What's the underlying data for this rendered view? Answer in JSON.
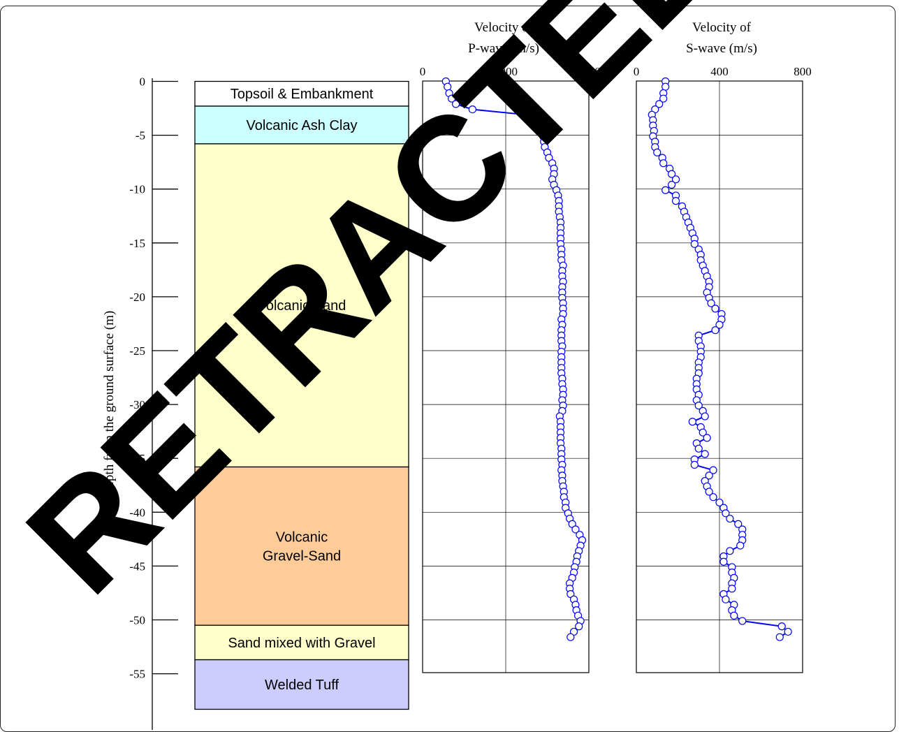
{
  "depth_axis": {
    "label": "Depth from the ground surface (m)",
    "ticks": [
      "0",
      "-5",
      "-10",
      "-15",
      "-20",
      "-25",
      "-30",
      "-35",
      "-40",
      "-45",
      "-50",
      "-55"
    ]
  },
  "layers": [
    {
      "name": "Topsoil & Embankment",
      "top": 0,
      "bottom": -2.3,
      "color": "#ffffff"
    },
    {
      "name": "Volcanic Ash Clay",
      "top": -2.3,
      "bottom": -5.8,
      "color": "#ccffff"
    },
    {
      "name": "Volcanic Sand",
      "top": -5.8,
      "bottom": -35.8,
      "color": "#ffffcc"
    },
    {
      "name": "Volcanic Gravel-Sand",
      "lines": [
        "Volcanic",
        "Gravel-Sand"
      ],
      "top": -35.8,
      "bottom": -50.5,
      "color": "#ffcc99"
    },
    {
      "name": "Sand mixed with Gravel",
      "top": -50.5,
      "bottom": -53.7,
      "color": "#ffffcc"
    },
    {
      "name": "Welded Tuff",
      "top": -53.7,
      "bottom": -58.3,
      "color": "#ccccff"
    }
  ],
  "watermark": "RETRACTED ARTICLE",
  "series_color": "#0000ff",
  "chart_data": [
    {
      "type": "scatter",
      "title": [
        "Velocity of",
        "P-wave (m/s)"
      ],
      "xlim": [
        0,
        2000
      ],
      "xticks": [
        "0",
        "1000",
        "2000"
      ],
      "ylim": [
        -55,
        0
      ],
      "grid": true,
      "points": [
        [
          280,
          0
        ],
        [
          300,
          -0.5
        ],
        [
          320,
          -1.1
        ],
        [
          350,
          -1.6
        ],
        [
          400,
          -2.1
        ],
        [
          600,
          -2.6
        ],
        [
          1250,
          -3.1
        ],
        [
          1440,
          -3.6
        ],
        [
          1440,
          -4.1
        ],
        [
          1450,
          -4.6
        ],
        [
          1450,
          -5.1
        ],
        [
          1460,
          -5.6
        ],
        [
          1470,
          -6.1
        ],
        [
          1500,
          -6.6
        ],
        [
          1520,
          -7.1
        ],
        [
          1560,
          -7.6
        ],
        [
          1580,
          -8.1
        ],
        [
          1580,
          -8.6
        ],
        [
          1560,
          -9.1
        ],
        [
          1580,
          -9.6
        ],
        [
          1610,
          -10.1
        ],
        [
          1630,
          -10.6
        ],
        [
          1640,
          -11.1
        ],
        [
          1640,
          -11.6
        ],
        [
          1640,
          -12.1
        ],
        [
          1650,
          -12.6
        ],
        [
          1660,
          -13.1
        ],
        [
          1660,
          -13.6
        ],
        [
          1660,
          -14.1
        ],
        [
          1660,
          -14.6
        ],
        [
          1660,
          -15.1
        ],
        [
          1670,
          -15.6
        ],
        [
          1670,
          -16.1
        ],
        [
          1670,
          -16.6
        ],
        [
          1690,
          -17.1
        ],
        [
          1680,
          -17.6
        ],
        [
          1680,
          -18.1
        ],
        [
          1690,
          -18.6
        ],
        [
          1680,
          -19.1
        ],
        [
          1680,
          -19.6
        ],
        [
          1680,
          -20.1
        ],
        [
          1690,
          -20.6
        ],
        [
          1690,
          -21.1
        ],
        [
          1690,
          -21.6
        ],
        [
          1670,
          -22.1
        ],
        [
          1680,
          -22.6
        ],
        [
          1670,
          -23.1
        ],
        [
          1670,
          -23.6
        ],
        [
          1670,
          -24.1
        ],
        [
          1680,
          -24.6
        ],
        [
          1670,
          -25.1
        ],
        [
          1670,
          -25.6
        ],
        [
          1670,
          -26.1
        ],
        [
          1670,
          -26.6
        ],
        [
          1670,
          -27.1
        ],
        [
          1680,
          -27.6
        ],
        [
          1680,
          -28.1
        ],
        [
          1690,
          -28.6
        ],
        [
          1690,
          -29.1
        ],
        [
          1680,
          -29.6
        ],
        [
          1690,
          -30.1
        ],
        [
          1680,
          -30.6
        ],
        [
          1650,
          -31.1
        ],
        [
          1660,
          -31.6
        ],
        [
          1660,
          -32.1
        ],
        [
          1660,
          -32.6
        ],
        [
          1660,
          -33.1
        ],
        [
          1660,
          -33.6
        ],
        [
          1670,
          -34.1
        ],
        [
          1670,
          -34.6
        ],
        [
          1670,
          -35.1
        ],
        [
          1680,
          -35.6
        ],
        [
          1670,
          -36.1
        ],
        [
          1680,
          -36.6
        ],
        [
          1680,
          -37.1
        ],
        [
          1690,
          -37.6
        ],
        [
          1700,
          -38.1
        ],
        [
          1700,
          -38.6
        ],
        [
          1720,
          -39.1
        ],
        [
          1720,
          -39.6
        ],
        [
          1750,
          -40.1
        ],
        [
          1770,
          -40.6
        ],
        [
          1800,
          -41.1
        ],
        [
          1840,
          -41.6
        ],
        [
          1890,
          -42.1
        ],
        [
          1920,
          -42.6
        ],
        [
          1900,
          -43.1
        ],
        [
          1880,
          -43.6
        ],
        [
          1860,
          -44.1
        ],
        [
          1850,
          -44.6
        ],
        [
          1830,
          -45.1
        ],
        [
          1820,
          -45.6
        ],
        [
          1800,
          -46.1
        ],
        [
          1770,
          -46.6
        ],
        [
          1770,
          -47.1
        ],
        [
          1780,
          -47.6
        ],
        [
          1820,
          -48.1
        ],
        [
          1840,
          -48.6
        ],
        [
          1850,
          -49.1
        ],
        [
          1870,
          -49.6
        ],
        [
          1900,
          -50.1
        ],
        [
          1880,
          -50.6
        ],
        [
          1820,
          -51.1
        ],
        [
          1780,
          -51.6
        ]
      ]
    },
    {
      "type": "scatter",
      "title": [
        "Velocity of",
        "S-wave (m/s)"
      ],
      "xlim": [
        0,
        800
      ],
      "xticks": [
        "0",
        "400",
        "800"
      ],
      "ylim": [
        -55,
        0
      ],
      "grid": true,
      "points": [
        [
          140,
          0
        ],
        [
          140,
          -0.5
        ],
        [
          130,
          -1.1
        ],
        [
          130,
          -1.6
        ],
        [
          110,
          -2.1
        ],
        [
          90,
          -2.6
        ],
        [
          75,
          -3.1
        ],
        [
          80,
          -3.6
        ],
        [
          80,
          -4.1
        ],
        [
          85,
          -4.6
        ],
        [
          80,
          -5.1
        ],
        [
          90,
          -5.6
        ],
        [
          90,
          -6.1
        ],
        [
          100,
          -6.6
        ],
        [
          125,
          -7.1
        ],
        [
          130,
          -7.6
        ],
        [
          160,
          -8.1
        ],
        [
          170,
          -8.6
        ],
        [
          190,
          -9.1
        ],
        [
          170,
          -9.6
        ],
        [
          140,
          -10.1
        ],
        [
          190,
          -10.6
        ],
        [
          190,
          -11.1
        ],
        [
          220,
          -11.6
        ],
        [
          230,
          -12.1
        ],
        [
          240,
          -12.6
        ],
        [
          250,
          -13.1
        ],
        [
          260,
          -13.6
        ],
        [
          270,
          -14.1
        ],
        [
          280,
          -14.6
        ],
        [
          280,
          -15.1
        ],
        [
          300,
          -15.6
        ],
        [
          310,
          -16.1
        ],
        [
          310,
          -16.6
        ],
        [
          320,
          -17.1
        ],
        [
          330,
          -17.6
        ],
        [
          340,
          -18.1
        ],
        [
          350,
          -18.6
        ],
        [
          350,
          -19.1
        ],
        [
          340,
          -19.6
        ],
        [
          350,
          -20.1
        ],
        [
          360,
          -20.6
        ],
        [
          380,
          -21.1
        ],
        [
          410,
          -21.6
        ],
        [
          410,
          -22.1
        ],
        [
          400,
          -22.6
        ],
        [
          380,
          -23.1
        ],
        [
          300,
          -23.6
        ],
        [
          300,
          -24.1
        ],
        [
          310,
          -24.6
        ],
        [
          310,
          -25.1
        ],
        [
          310,
          -25.6
        ],
        [
          300,
          -26.1
        ],
        [
          300,
          -26.6
        ],
        [
          300,
          -27.1
        ],
        [
          290,
          -27.6
        ],
        [
          290,
          -28.1
        ],
        [
          290,
          -28.6
        ],
        [
          300,
          -29.1
        ],
        [
          290,
          -29.6
        ],
        [
          300,
          -30.1
        ],
        [
          320,
          -30.6
        ],
        [
          330,
          -31.1
        ],
        [
          270,
          -31.6
        ],
        [
          310,
          -32.1
        ],
        [
          320,
          -32.6
        ],
        [
          340,
          -33.1
        ],
        [
          290,
          -33.6
        ],
        [
          300,
          -34.1
        ],
        [
          330,
          -34.6
        ],
        [
          280,
          -35.1
        ],
        [
          280,
          -35.6
        ],
        [
          370,
          -36.1
        ],
        [
          350,
          -36.6
        ],
        [
          330,
          -37.1
        ],
        [
          340,
          -37.6
        ],
        [
          350,
          -38.1
        ],
        [
          370,
          -38.6
        ],
        [
          400,
          -39.1
        ],
        [
          420,
          -39.6
        ],
        [
          430,
          -40.1
        ],
        [
          450,
          -40.6
        ],
        [
          490,
          -41.1
        ],
        [
          510,
          -41.6
        ],
        [
          510,
          -42.1
        ],
        [
          510,
          -42.6
        ],
        [
          500,
          -43.1
        ],
        [
          450,
          -43.6
        ],
        [
          420,
          -44.1
        ],
        [
          420,
          -44.6
        ],
        [
          460,
          -45.1
        ],
        [
          460,
          -45.6
        ],
        [
          470,
          -46.1
        ],
        [
          460,
          -46.6
        ],
        [
          460,
          -47.1
        ],
        [
          420,
          -47.6
        ],
        [
          430,
          -48.1
        ],
        [
          470,
          -48.6
        ],
        [
          460,
          -49.1
        ],
        [
          470,
          -49.6
        ],
        [
          510,
          -50.1
        ],
        [
          700,
          -50.6
        ],
        [
          730,
          -51.1
        ],
        [
          690,
          -51.6
        ]
      ]
    }
  ]
}
